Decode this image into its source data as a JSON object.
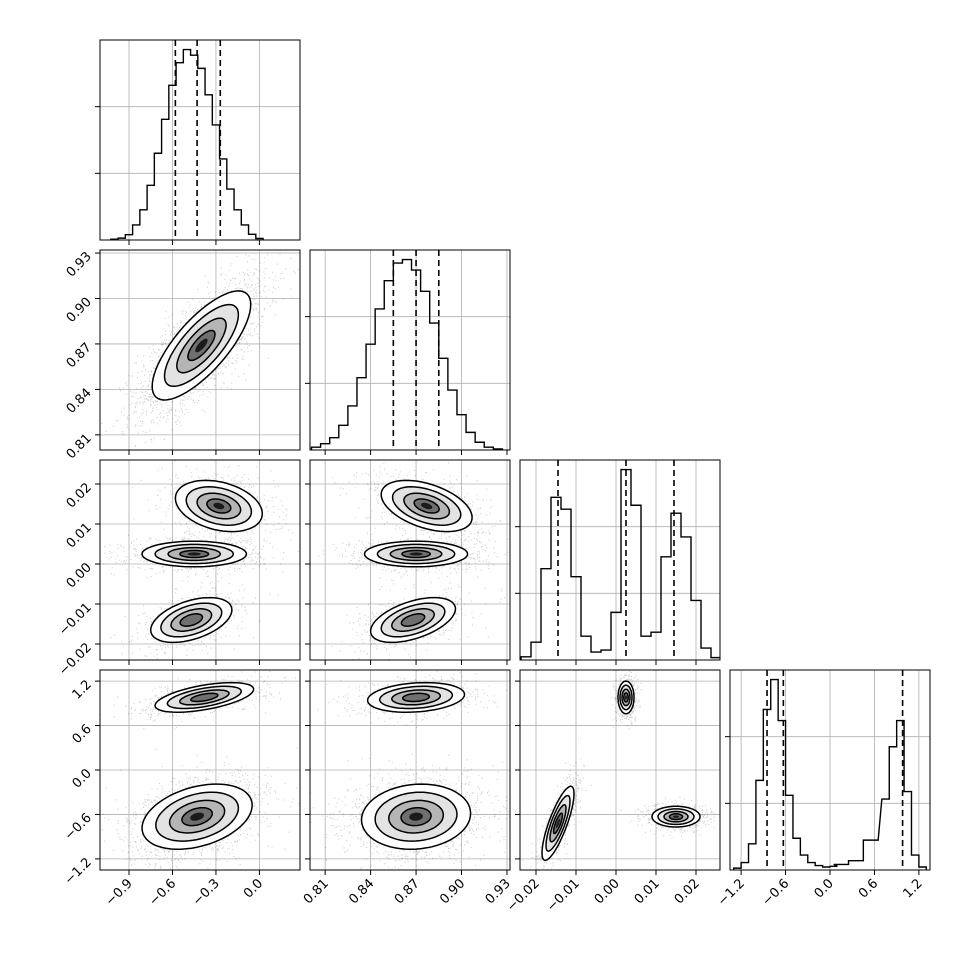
{
  "chart_data": {
    "type": "corner",
    "grid": true,
    "n_params": 4,
    "params": [
      {
        "name": "",
        "range": [
          -1.1,
          0.28
        ],
        "ticks": [
          -0.9,
          -0.6,
          -0.3,
          0.0
        ],
        "tick_labels": [
          "−0.9",
          "−0.6",
          "−0.3",
          "0.0"
        ]
      },
      {
        "name": "",
        "range": [
          0.8,
          0.932
        ],
        "ticks": [
          0.81,
          0.84,
          0.87,
          0.9,
          0.93
        ],
        "tick_labels": [
          "0.81",
          "0.84",
          "0.87",
          "0.90",
          "0.93"
        ]
      },
      {
        "name": "",
        "range": [
          -0.024,
          0.026
        ],
        "ticks": [
          -0.02,
          -0.01,
          0.0,
          0.01,
          0.02
        ],
        "tick_labels": [
          "−0.02",
          "−0.01",
          "0.00",
          "0.01",
          "0.02"
        ]
      },
      {
        "name": "",
        "range": [
          -1.35,
          1.35
        ],
        "ticks": [
          -1.2,
          -0.6,
          0.0,
          0.6,
          1.2
        ],
        "tick_labels": [
          "−1.2",
          "−0.6",
          "0.0",
          "0.6",
          "1.2"
        ]
      }
    ],
    "histograms": [
      {
        "param": 0,
        "quantiles": [
          -0.58,
          -0.43,
          -0.27
        ],
        "bins": [
          {
            "x": -1.0,
            "count": 2
          },
          {
            "x": -0.95,
            "count": 5
          },
          {
            "x": -0.9,
            "count": 14
          },
          {
            "x": -0.85,
            "count": 40
          },
          {
            "x": -0.8,
            "count": 80
          },
          {
            "x": -0.75,
            "count": 145
          },
          {
            "x": -0.7,
            "count": 230
          },
          {
            "x": -0.65,
            "count": 320
          },
          {
            "x": -0.6,
            "count": 410
          },
          {
            "x": -0.55,
            "count": 470
          },
          {
            "x": -0.5,
            "count": 505
          },
          {
            "x": -0.45,
            "count": 490
          },
          {
            "x": -0.4,
            "count": 455
          },
          {
            "x": -0.35,
            "count": 385
          },
          {
            "x": -0.3,
            "count": 305
          },
          {
            "x": -0.25,
            "count": 215
          },
          {
            "x": -0.2,
            "count": 135
          },
          {
            "x": -0.15,
            "count": 80
          },
          {
            "x": -0.1,
            "count": 40
          },
          {
            "x": -0.05,
            "count": 15
          },
          {
            "x": 0.0,
            "count": 4
          }
        ]
      },
      {
        "param": 1,
        "quantiles": [
          0.855,
          0.87,
          0.885
        ],
        "bins": [
          {
            "x": 0.804,
            "count": 8
          },
          {
            "x": 0.81,
            "count": 18
          },
          {
            "x": 0.816,
            "count": 35
          },
          {
            "x": 0.822,
            "count": 70
          },
          {
            "x": 0.828,
            "count": 125
          },
          {
            "x": 0.834,
            "count": 205
          },
          {
            "x": 0.84,
            "count": 300
          },
          {
            "x": 0.846,
            "count": 400
          },
          {
            "x": 0.852,
            "count": 480
          },
          {
            "x": 0.858,
            "count": 530
          },
          {
            "x": 0.864,
            "count": 540
          },
          {
            "x": 0.87,
            "count": 510
          },
          {
            "x": 0.876,
            "count": 450
          },
          {
            "x": 0.882,
            "count": 360
          },
          {
            "x": 0.888,
            "count": 260
          },
          {
            "x": 0.894,
            "count": 170
          },
          {
            "x": 0.9,
            "count": 100
          },
          {
            "x": 0.906,
            "count": 50
          },
          {
            "x": 0.912,
            "count": 22
          },
          {
            "x": 0.918,
            "count": 8
          },
          {
            "x": 0.924,
            "count": 3
          }
        ]
      },
      {
        "param": 2,
        "quantiles": [
          -0.0145,
          0.0025,
          0.0145
        ],
        "bins": [
          {
            "x": -0.0225,
            "count": 8
          },
          {
            "x": -0.02,
            "count": 45
          },
          {
            "x": -0.0175,
            "count": 230
          },
          {
            "x": -0.015,
            "count": 410
          },
          {
            "x": -0.0125,
            "count": 380
          },
          {
            "x": -0.01,
            "count": 210
          },
          {
            "x": -0.0075,
            "count": 60
          },
          {
            "x": -0.005,
            "count": 20
          },
          {
            "x": -0.0025,
            "count": 25
          },
          {
            "x": 0.0,
            "count": 120
          },
          {
            "x": 0.0025,
            "count": 480
          },
          {
            "x": 0.005,
            "count": 390
          },
          {
            "x": 0.0075,
            "count": 60
          },
          {
            "x": 0.01,
            "count": 70
          },
          {
            "x": 0.0125,
            "count": 260
          },
          {
            "x": 0.015,
            "count": 370
          },
          {
            "x": 0.0175,
            "count": 310
          },
          {
            "x": 0.02,
            "count": 150
          },
          {
            "x": 0.0225,
            "count": 30
          },
          {
            "x": 0.025,
            "count": 6
          }
        ]
      },
      {
        "param": 3,
        "quantiles": [
          -0.85,
          -0.63,
          0.98
        ],
        "bins": [
          {
            "x": -1.25,
            "count": 5
          },
          {
            "x": -1.15,
            "count": 20
          },
          {
            "x": -1.05,
            "count": 70
          },
          {
            "x": -0.95,
            "count": 240
          },
          {
            "x": -0.85,
            "count": 430
          },
          {
            "x": -0.75,
            "count": 510
          },
          {
            "x": -0.65,
            "count": 400
          },
          {
            "x": -0.55,
            "count": 200
          },
          {
            "x": -0.45,
            "count": 85
          },
          {
            "x": -0.35,
            "count": 40
          },
          {
            "x": -0.25,
            "count": 20
          },
          {
            "x": -0.15,
            "count": 12
          },
          {
            "x": -0.05,
            "count": 8
          },
          {
            "x": 0.05,
            "count": 10
          },
          {
            "x": 0.15,
            "count": 15
          },
          {
            "x": 0.35,
            "count": 25
          },
          {
            "x": 0.55,
            "count": 80
          },
          {
            "x": 0.75,
            "count": 190
          },
          {
            "x": 0.85,
            "count": 330
          },
          {
            "x": 0.95,
            "count": 400
          },
          {
            "x": 1.05,
            "count": 210
          },
          {
            "x": 1.15,
            "count": 40
          },
          {
            "x": 1.25,
            "count": 8
          }
        ]
      }
    ],
    "scatter_panels": [
      {
        "x_param": 0,
        "y_param": 1,
        "modes": [
          {
            "center": [
              -0.4,
              0.869
            ],
            "sigma": [
              0.17,
              0.018
            ],
            "rho": 0.75,
            "weight": 1.0
          }
        ]
      },
      {
        "x_param": 0,
        "y_param": 2,
        "modes": [
          {
            "center": [
              -0.28,
              0.0145
            ],
            "sigma": [
              0.15,
              0.0032
            ],
            "rho": -0.3,
            "weight": 0.32
          },
          {
            "center": [
              -0.45,
              0.0025
            ],
            "sigma": [
              0.18,
              0.0016
            ],
            "rho": 0.0,
            "weight": 0.38
          },
          {
            "center": [
              -0.47,
              -0.014
            ],
            "sigma": [
              0.14,
              0.0028
            ],
            "rho": 0.45,
            "weight": 0.3
          }
        ]
      },
      {
        "x_param": 1,
        "y_param": 2,
        "modes": [
          {
            "center": [
              0.877,
              0.0145
            ],
            "sigma": [
              0.015,
              0.0032
            ],
            "rho": -0.45,
            "weight": 0.32
          },
          {
            "center": [
              0.87,
              0.0025
            ],
            "sigma": [
              0.017,
              0.0016
            ],
            "rho": 0.0,
            "weight": 0.38
          },
          {
            "center": [
              0.868,
              -0.014
            ],
            "sigma": [
              0.014,
              0.0028
            ],
            "rho": 0.5,
            "weight": 0.3
          }
        ]
      },
      {
        "x_param": 0,
        "y_param": 3,
        "modes": [
          {
            "center": [
              -0.38,
              0.98
            ],
            "sigma": [
              0.17,
              0.1
            ],
            "rho": 0.55,
            "weight": 0.3
          },
          {
            "center": [
              -0.43,
              -0.63
            ],
            "sigma": [
              0.19,
              0.22
            ],
            "rho": 0.35,
            "weight": 0.7
          }
        ]
      },
      {
        "x_param": 1,
        "y_param": 3,
        "modes": [
          {
            "center": [
              0.87,
              0.98
            ],
            "sigma": [
              0.016,
              0.1
            ],
            "rho": 0.2,
            "weight": 0.3
          },
          {
            "center": [
              0.87,
              -0.63
            ],
            "sigma": [
              0.018,
              0.22
            ],
            "rho": 0.1,
            "weight": 0.7
          }
        ]
      },
      {
        "x_param": 2,
        "y_param": 3,
        "modes": [
          {
            "center": [
              0.0025,
              0.98
            ],
            "sigma": [
              0.001,
              0.11
            ],
            "rho": 0.0,
            "weight": 0.3
          },
          {
            "center": [
              -0.0145,
              -0.72
            ],
            "sigma": [
              0.002,
              0.25
            ],
            "rho": 0.8,
            "weight": 0.35
          },
          {
            "center": [
              0.015,
              -0.63
            ],
            "sigma": [
              0.003,
              0.07
            ],
            "rho": 0.0,
            "weight": 0.35
          }
        ]
      }
    ]
  }
}
